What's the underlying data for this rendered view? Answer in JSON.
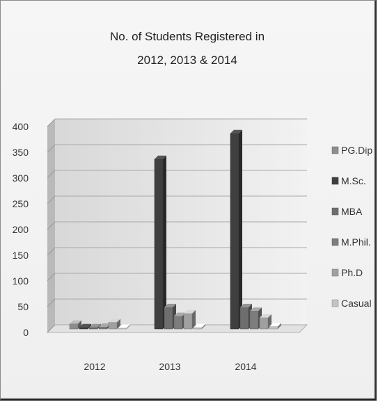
{
  "chart_data": {
    "type": "bar",
    "title_lines": [
      "No. of Students Registered in",
      "2012, 2013 & 2014"
    ],
    "categories": [
      "2012",
      "2013",
      "2014"
    ],
    "series": [
      {
        "name": "PG.Dip",
        "values": [
          10,
          0,
          0
        ],
        "color": "#8c8c8c"
      },
      {
        "name": "M.Sc.",
        "values": [
          3,
          330,
          380
        ],
        "color": "#3f3f3f"
      },
      {
        "name": "MBA",
        "values": [
          3,
          42,
          42
        ],
        "color": "#6e6e6e"
      },
      {
        "name": "M.Phil.",
        "values": [
          4,
          25,
          35
        ],
        "color": "#7d7d7d"
      },
      {
        "name": "Ph.D",
        "values": [
          13,
          30,
          22
        ],
        "color": "#a0a0a0"
      },
      {
        "name": "Casual",
        "values": [
          2,
          3,
          5
        ],
        "color": "#c2c2c2"
      }
    ],
    "y_ticks": [
      "0",
      "50",
      "100",
      "150",
      "200",
      "250",
      "300",
      "350",
      "400"
    ],
    "ylim": [
      0,
      400
    ],
    "grid": true,
    "legend": "right"
  }
}
